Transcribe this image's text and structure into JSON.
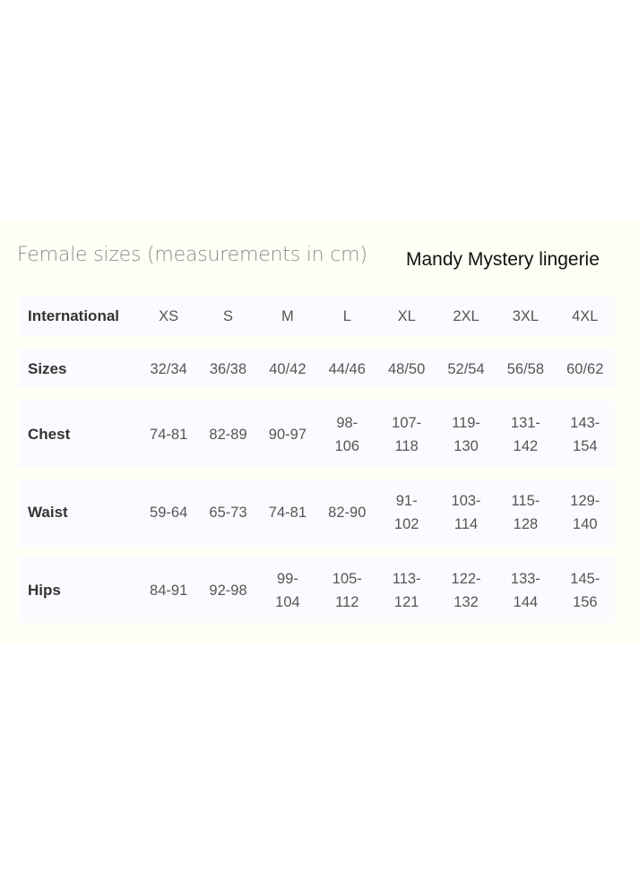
{
  "title": "Female sizes (measurements in cm)",
  "brand": "Mandy Mystery lingerie",
  "rows": [
    {
      "label": "International",
      "cells": [
        [
          "XS"
        ],
        [
          "S"
        ],
        [
          "M"
        ],
        [
          "L"
        ],
        [
          "XL"
        ],
        [
          "2XL"
        ],
        [
          "3XL"
        ],
        [
          "4XL"
        ]
      ]
    },
    {
      "label": "Sizes",
      "cells": [
        [
          "32/34"
        ],
        [
          "36/38"
        ],
        [
          "40/42"
        ],
        [
          "44/46"
        ],
        [
          "48/50"
        ],
        [
          "52/54"
        ],
        [
          "56/58"
        ],
        [
          "60/62"
        ]
      ]
    },
    {
      "label": "Chest",
      "cells": [
        [
          "74-81"
        ],
        [
          "82-89"
        ],
        [
          "90-97"
        ],
        [
          "98-",
          "106"
        ],
        [
          "107-",
          "118"
        ],
        [
          "119-",
          "130"
        ],
        [
          "131-",
          "142"
        ],
        [
          "143-",
          "154"
        ]
      ]
    },
    {
      "label": "Waist",
      "cells": [
        [
          "59-64"
        ],
        [
          "65-73"
        ],
        [
          "74-81"
        ],
        [
          "82-90"
        ],
        [
          "91-",
          "102"
        ],
        [
          "103-",
          "114"
        ],
        [
          "115-",
          "128"
        ],
        [
          "129-",
          "140"
        ]
      ]
    },
    {
      "label": "Hips",
      "cells": [
        [
          "84-91"
        ],
        [
          "92-98"
        ],
        [
          "99-",
          "104"
        ],
        [
          "105-",
          "112"
        ],
        [
          "113-",
          "121"
        ],
        [
          "122-",
          "132"
        ],
        [
          "133-",
          "144"
        ],
        [
          "145-",
          "156"
        ]
      ]
    }
  ],
  "colors": {
    "background": "#fffff6",
    "row": "#fcfaff",
    "title": "#8a8a8a"
  }
}
